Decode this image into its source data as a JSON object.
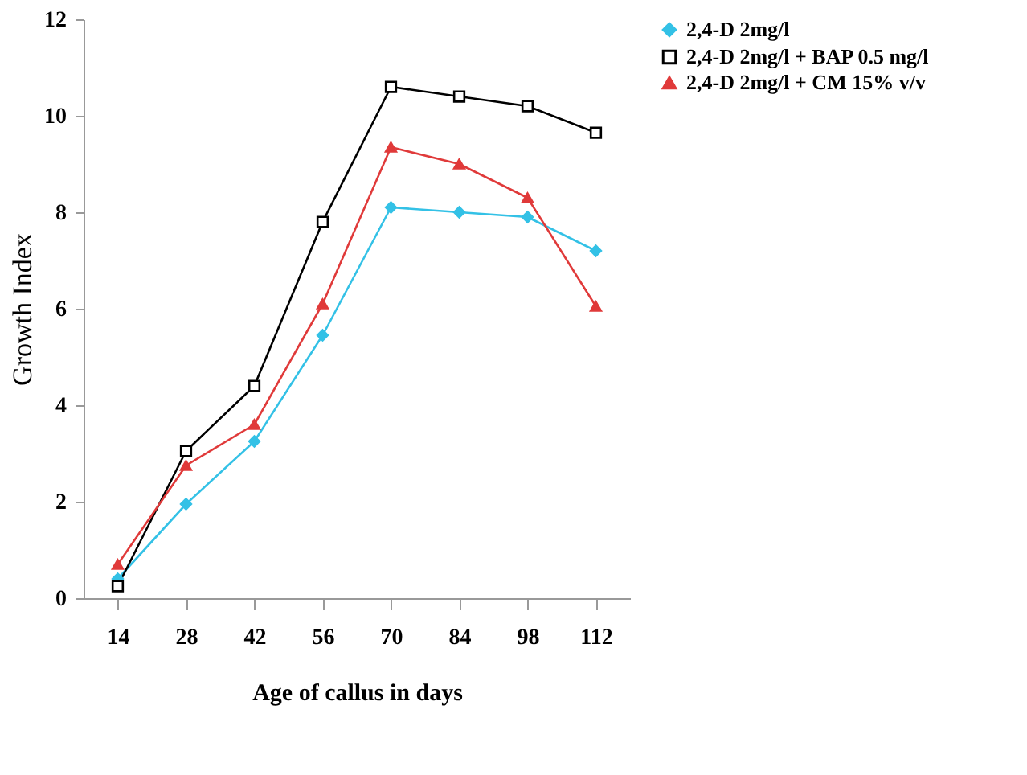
{
  "chart_data": {
    "type": "line",
    "xlabel": "Age of callus in days",
    "ylabel": "Growth Index",
    "categories": [
      "14",
      "28",
      "42",
      "56",
      "70",
      "84",
      "98",
      "112"
    ],
    "ylim": [
      0,
      12
    ],
    "yticks": [
      0,
      2,
      4,
      6,
      8,
      10,
      12
    ],
    "grid": false,
    "legend": "right",
    "series": [
      {
        "name": "2,4-D 2mg/l",
        "color": "#33c1e6",
        "marker": "diamond",
        "values": [
          0.4,
          1.95,
          3.25,
          5.45,
          8.1,
          8.0,
          7.9,
          7.2
        ]
      },
      {
        "name": "2,4-D 2mg/l + BAP 0.5 mg/l",
        "color": "#000000",
        "marker": "square",
        "values": [
          0.25,
          3.05,
          4.4,
          7.8,
          10.6,
          10.4,
          10.2,
          9.65
        ]
      },
      {
        "name": "2,4-D 2mg/l + CM 15% v/v",
        "color": "#e03a3a",
        "marker": "triangle",
        "values": [
          0.7,
          2.75,
          3.6,
          6.1,
          9.35,
          9.0,
          8.3,
          6.05
        ]
      }
    ]
  }
}
